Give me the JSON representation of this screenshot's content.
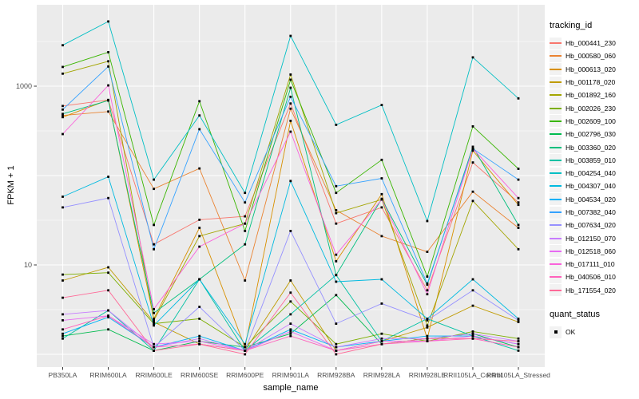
{
  "chart_data": {
    "type": "line",
    "title": "",
    "xlabel": "sample_name",
    "ylabel": "FPKM + 1",
    "y_scale": "log10",
    "ylim": [
      0.9,
      8000
    ],
    "y_ticks": [
      {
        "value": 1000,
        "label": "1000"
      },
      {
        "value": 10,
        "label": "10"
      }
    ],
    "y_major_gridlines": [
      1,
      10,
      100,
      1000
    ],
    "y_minor_gridlines": [
      3.162,
      31.62,
      316.2,
      3162
    ],
    "grid": "white-on-grey-panel",
    "panel_color": "#ebebeb",
    "gridline_color": "#ffffff",
    "axis_text_color": "#4d4d4d",
    "point_marker": "small-black-square",
    "legend_position": "right",
    "categories": [
      "PB350LA",
      "RRIM600LA",
      "RRIM600LE",
      "RRIM600SE",
      "RRIM600PE",
      "RRIM901LA",
      "RRIM928BA",
      "RRIM928LA",
      "RRIM928LE",
      "RRII105LA_Control",
      "RRII105LA_Stressed"
    ],
    "legend": {
      "title": "tracking_id"
    },
    "legend2": {
      "title": "quant_status",
      "items": [
        {
          "label": "OK",
          "marker": "black-square"
        }
      ]
    },
    "series": [
      {
        "name": "Hb_000441_230",
        "color": "#F8766D",
        "values": [
          600,
          700,
          17,
          32,
          35,
          640,
          29,
          44,
          5.2,
          140,
          50
        ]
      },
      {
        "name": "Hb_000580_060",
        "color": "#EA8331",
        "values": [
          470,
          520,
          71,
          120,
          6.7,
          560,
          41,
          21,
          14,
          66,
          26
        ]
      },
      {
        "name": "Hb_000613_020",
        "color": "#D89000",
        "values": [
          450,
          700,
          2.5,
          26,
          1.2,
          410,
          11,
          62,
          1.5,
          190,
          47
        ]
      },
      {
        "name": "Hb_001178_020",
        "color": "#C09B00",
        "values": [
          6.7,
          9.4,
          2.3,
          1.3,
          1.1,
          6.7,
          1.1,
          1.4,
          2.0,
          3.5,
          2.3
        ]
      },
      {
        "name": "Hb_001892_160",
        "color": "#A3A500",
        "values": [
          1380,
          1900,
          2.4,
          21,
          29,
          1350,
          38,
          54,
          2.1,
          52,
          15
        ]
      },
      {
        "name": "Hb_002026_230",
        "color": "#7CAE00",
        "values": [
          7.8,
          8.2,
          2.2,
          2.5,
          1.2,
          3.9,
          1.3,
          1.7,
          1.4,
          1.8,
          1.5
        ]
      },
      {
        "name": "Hb_002609_100",
        "color": "#39B600",
        "values": [
          1640,
          2400,
          28,
          680,
          24,
          1180,
          64,
          150,
          7.4,
          355,
          119
        ]
      },
      {
        "name": "Hb_002796_030",
        "color": "#00BB4E",
        "values": [
          1.6,
          1.9,
          1.1,
          1.4,
          1.2,
          1.7,
          4.6,
          1.3,
          1.5,
          1.7,
          1.2
        ]
      },
      {
        "name": "Hb_003360_020",
        "color": "#00BF7D",
        "values": [
          490,
          690,
          2.9,
          6.9,
          17,
          960,
          7.7,
          55,
          6.0,
          210,
          28
        ]
      },
      {
        "name": "Hb_003859_010",
        "color": "#00C1A3",
        "values": [
          1.5,
          3.1,
          1.1,
          6.9,
          1.1,
          2.8,
          7.7,
          1.4,
          2.5,
          1.6,
          1.1
        ]
      },
      {
        "name": "Hb_004254_040",
        "color": "#00BFC4",
        "values": [
          2870,
          5300,
          90,
          470,
          64,
          3650,
          370,
          615,
          31,
          2100,
          730
        ]
      },
      {
        "name": "Hb_004307_040",
        "color": "#00BAE0",
        "values": [
          58,
          97,
          2.1,
          6.9,
          1.3,
          87,
          6.5,
          6.9,
          2.5,
          6.9,
          2.5
        ]
      },
      {
        "name": "Hb_004534_020",
        "color": "#00B0F6",
        "values": [
          1.7,
          2.6,
          1.2,
          1.6,
          1.1,
          1.9,
          1.2,
          1.4,
          1.6,
          1.6,
          1.3
        ]
      },
      {
        "name": "Hb_007382_040",
        "color": "#35A2FF",
        "values": [
          547,
          1660,
          15,
          330,
          50,
          760,
          76,
          93,
          6.2,
          200,
          90
        ]
      },
      {
        "name": "Hb_007634_020",
        "color": "#9590FF",
        "values": [
          44,
          56,
          1.2,
          3.4,
          1.1,
          24,
          2.2,
          3.7,
          2.4,
          5.2,
          2.4
        ]
      },
      {
        "name": "Hb_012150_070",
        "color": "#C77CFF",
        "values": [
          2.8,
          3.1,
          1.2,
          1.5,
          1.1,
          2.2,
          1.2,
          1.5,
          1.5,
          1.7,
          1.4
        ]
      },
      {
        "name": "Hb_012518_060",
        "color": "#E76BF3",
        "values": [
          2.4,
          2.7,
          1.3,
          1.4,
          1.1,
          1.8,
          1.1,
          1.4,
          1.4,
          1.6,
          1.3
        ]
      },
      {
        "name": "Hb_017111_010",
        "color": "#FA62DB",
        "values": [
          291,
          1020,
          3.2,
          16,
          29,
          310,
          13,
          54,
          4.7,
          200,
          56
        ]
      },
      {
        "name": "Hb_040506_010",
        "color": "#FF62BC",
        "values": [
          1.9,
          2.7,
          1.2,
          1.3,
          1.1,
          1.6,
          1.1,
          1.3,
          1.4,
          1.5,
          1.2
        ]
      },
      {
        "name": "Hb_171554_020",
        "color": "#FF6A98",
        "values": [
          4.3,
          5.2,
          1.1,
          1.3,
          1.0,
          4.9,
          1.0,
          1.3,
          1.5,
          1.5,
          1.4
        ]
      }
    ]
  }
}
